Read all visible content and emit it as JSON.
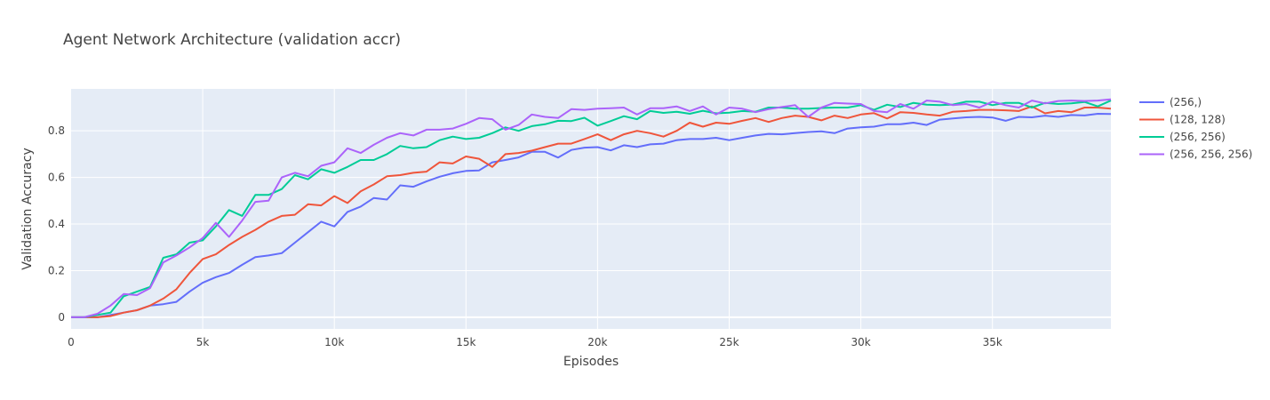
{
  "chart_data": {
    "type": "line",
    "title": "Agent Network Architecture (validation accr)",
    "xlabel": "Episodes",
    "ylabel": "Validation Accuracy",
    "xlim": [
      0,
      39500
    ],
    "ylim": [
      -0.05,
      0.98
    ],
    "grid": true,
    "legend_position": "right",
    "x_ticks": [
      {
        "value": 0,
        "label": "0"
      },
      {
        "value": 5000,
        "label": "5k"
      },
      {
        "value": 10000,
        "label": "10k"
      },
      {
        "value": 15000,
        "label": "15k"
      },
      {
        "value": 20000,
        "label": "20k"
      },
      {
        "value": 25000,
        "label": "25k"
      },
      {
        "value": 30000,
        "label": "30k"
      },
      {
        "value": 35000,
        "label": "35k"
      }
    ],
    "y_ticks": [
      {
        "value": 0,
        "label": "0"
      },
      {
        "value": 0.2,
        "label": "0.2"
      },
      {
        "value": 0.4,
        "label": "0.4"
      },
      {
        "value": 0.6,
        "label": "0.6"
      },
      {
        "value": 0.8,
        "label": "0.8"
      }
    ],
    "x_step": 500,
    "series": [
      {
        "name": "(256,)",
        "color": "#636efa",
        "values": [
          0.0,
          0.0,
          0.0,
          0.01,
          0.02,
          0.03,
          0.05,
          0.056,
          0.066,
          0.11,
          0.148,
          0.172,
          0.19,
          0.225,
          0.258,
          0.265,
          0.275,
          0.32,
          0.365,
          0.41,
          0.39,
          0.452,
          0.475,
          0.512,
          0.505,
          0.566,
          0.56,
          0.583,
          0.603,
          0.618,
          0.628,
          0.63,
          0.665,
          0.675,
          0.686,
          0.71,
          0.71,
          0.685,
          0.718,
          0.728,
          0.73,
          0.716,
          0.738,
          0.73,
          0.742,
          0.745,
          0.76,
          0.765,
          0.765,
          0.77,
          0.76,
          0.77,
          0.78,
          0.787,
          0.785,
          0.79,
          0.795,
          0.798,
          0.79,
          0.81,
          0.815,
          0.818,
          0.828,
          0.828,
          0.835,
          0.825,
          0.848,
          0.853,
          0.858,
          0.86,
          0.857,
          0.843,
          0.86,
          0.858,
          0.865,
          0.86,
          0.868,
          0.866,
          0.873,
          0.872
        ]
      },
      {
        "name": "(128, 128)",
        "color": "#ef553b",
        "values": [
          0.0,
          0.0,
          0.0,
          0.005,
          0.02,
          0.03,
          0.05,
          0.08,
          0.12,
          0.19,
          0.25,
          0.27,
          0.31,
          0.345,
          0.375,
          0.41,
          0.435,
          0.44,
          0.485,
          0.48,
          0.52,
          0.49,
          0.54,
          0.57,
          0.605,
          0.61,
          0.62,
          0.625,
          0.665,
          0.66,
          0.69,
          0.68,
          0.645,
          0.7,
          0.705,
          0.715,
          0.73,
          0.745,
          0.745,
          0.765,
          0.785,
          0.76,
          0.785,
          0.8,
          0.79,
          0.775,
          0.8,
          0.835,
          0.818,
          0.835,
          0.83,
          0.843,
          0.855,
          0.838,
          0.855,
          0.865,
          0.86,
          0.845,
          0.865,
          0.855,
          0.87,
          0.876,
          0.853,
          0.88,
          0.877,
          0.87,
          0.865,
          0.882,
          0.885,
          0.89,
          0.89,
          0.888,
          0.885,
          0.905,
          0.875,
          0.885,
          0.88,
          0.9,
          0.9,
          0.895
        ]
      },
      {
        "name": "(256, 256)",
        "color": "#00cc96",
        "values": [
          0.0,
          0.0,
          0.01,
          0.02,
          0.09,
          0.11,
          0.13,
          0.255,
          0.27,
          0.32,
          0.33,
          0.39,
          0.46,
          0.435,
          0.525,
          0.525,
          0.55,
          0.61,
          0.592,
          0.635,
          0.62,
          0.645,
          0.675,
          0.675,
          0.7,
          0.735,
          0.725,
          0.73,
          0.76,
          0.775,
          0.765,
          0.77,
          0.79,
          0.815,
          0.8,
          0.82,
          0.828,
          0.843,
          0.842,
          0.856,
          0.822,
          0.842,
          0.863,
          0.85,
          0.885,
          0.877,
          0.882,
          0.873,
          0.886,
          0.875,
          0.878,
          0.885,
          0.882,
          0.9,
          0.9,
          0.895,
          0.895,
          0.898,
          0.9,
          0.9,
          0.91,
          0.89,
          0.912,
          0.902,
          0.92,
          0.912,
          0.91,
          0.913,
          0.925,
          0.925,
          0.91,
          0.92,
          0.92,
          0.9,
          0.92,
          0.915,
          0.918,
          0.924,
          0.905,
          0.93
        ]
      },
      {
        "name": "(256, 256, 256)",
        "color": "#ab63fa",
        "values": [
          0.0,
          0.0,
          0.015,
          0.05,
          0.1,
          0.095,
          0.125,
          0.235,
          0.265,
          0.3,
          0.34,
          0.405,
          0.345,
          0.415,
          0.495,
          0.5,
          0.6,
          0.62,
          0.605,
          0.65,
          0.665,
          0.725,
          0.705,
          0.74,
          0.77,
          0.79,
          0.78,
          0.805,
          0.805,
          0.81,
          0.83,
          0.855,
          0.85,
          0.805,
          0.825,
          0.87,
          0.86,
          0.855,
          0.893,
          0.89,
          0.895,
          0.897,
          0.9,
          0.87,
          0.897,
          0.897,
          0.905,
          0.885,
          0.905,
          0.87,
          0.9,
          0.895,
          0.88,
          0.893,
          0.902,
          0.91,
          0.86,
          0.9,
          0.92,
          0.917,
          0.915,
          0.885,
          0.88,
          0.915,
          0.895,
          0.93,
          0.925,
          0.91,
          0.915,
          0.9,
          0.925,
          0.91,
          0.9,
          0.93,
          0.918,
          0.928,
          0.93,
          0.928,
          0.93,
          0.935
        ]
      }
    ]
  }
}
